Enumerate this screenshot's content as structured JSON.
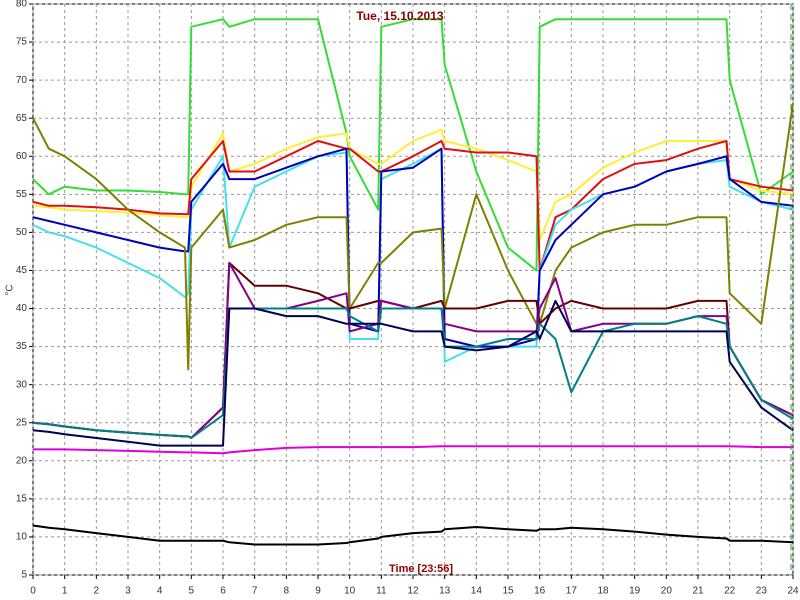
{
  "chart_data": {
    "type": "line",
    "title": "Tue, 15.10.2013",
    "xlabel": "Time [23:56]",
    "ylabel": "°C",
    "grid": true,
    "xlim": [
      0,
      24
    ],
    "xticks": [
      0,
      1,
      2,
      3,
      4,
      5,
      6,
      7,
      8,
      9,
      10,
      11,
      12,
      13,
      14,
      15,
      16,
      17,
      18,
      19,
      20,
      21,
      22,
      23,
      24
    ],
    "ylim": [
      5,
      80
    ],
    "yticks": [
      5,
      10,
      15,
      20,
      25,
      30,
      35,
      40,
      45,
      50,
      55,
      60,
      65,
      70,
      75,
      80
    ],
    "x": [
      0,
      0.5,
      1,
      2,
      3,
      4,
      4.8,
      4.9,
      5,
      6,
      6.2,
      7,
      8,
      9,
      9.9,
      10,
      10.9,
      11,
      12,
      12.9,
      13,
      14,
      15,
      15.9,
      16,
      16.5,
      17,
      18,
      19,
      20,
      21,
      21.9,
      22,
      23,
      24
    ],
    "series": [
      {
        "color": "#33dd33",
        "values": [
          57,
          55,
          56,
          55.5,
          55.5,
          55.3,
          55,
          55,
          77,
          78,
          77,
          78,
          78,
          78,
          63,
          60,
          53,
          77,
          78,
          78,
          72,
          58,
          48,
          45,
          77,
          78,
          78,
          78,
          78,
          78,
          78,
          78,
          70,
          55,
          58
        ]
      },
      {
        "color": "#ffee33",
        "values": [
          53.5,
          53.3,
          53,
          52.8,
          52.6,
          52.3,
          52,
          52,
          56,
          63,
          58,
          59,
          61,
          62.5,
          63,
          61,
          59,
          59,
          62,
          63.5,
          62,
          61,
          59.5,
          58,
          49,
          54,
          55,
          58.5,
          60.5,
          62,
          62,
          62,
          57,
          55.5,
          55
        ]
      },
      {
        "color": "#dd1111",
        "values": [
          54,
          53.5,
          53.5,
          53.3,
          53,
          52.5,
          52.4,
          52.4,
          57,
          62,
          58,
          58,
          60,
          62,
          61,
          61,
          58,
          58,
          60,
          62,
          61,
          60.5,
          60.5,
          60,
          45,
          52,
          53,
          57,
          59,
          59.5,
          61,
          62,
          57,
          56,
          55.5
        ]
      },
      {
        "color": "#44e0ee",
        "values": [
          51,
          50,
          49.5,
          48,
          46,
          44,
          41.5,
          42,
          53,
          60,
          48,
          56,
          58,
          60,
          60.5,
          36,
          36,
          57,
          59,
          61,
          33,
          35,
          35,
          35,
          45,
          51,
          53,
          55,
          56,
          58,
          59,
          59.5,
          56,
          54,
          53
        ]
      },
      {
        "color": "#0000bb",
        "values": [
          52,
          51.5,
          51,
          50,
          49,
          48,
          47.5,
          47.5,
          54,
          59,
          57,
          57,
          58.5,
          60,
          61,
          38,
          37,
          58,
          58.5,
          61,
          36,
          35,
          35,
          36,
          45,
          49,
          51,
          55,
          56,
          58,
          59,
          60,
          57,
          54,
          53.5
        ]
      },
      {
        "color": "#808000",
        "values": [
          65,
          61,
          60,
          57,
          53,
          50,
          48,
          32,
          48,
          53,
          48,
          49,
          51,
          52,
          52,
          40,
          46,
          46,
          50,
          50.5,
          40,
          55,
          45,
          38,
          38,
          45,
          48,
          50,
          51,
          51,
          52,
          52,
          42,
          38,
          67
        ]
      },
      {
        "color": "#660000",
        "values": [
          25,
          24.8,
          24.5,
          24,
          23.7,
          23.4,
          23.2,
          23.2,
          23,
          27,
          46,
          43,
          43,
          42,
          40,
          40,
          41,
          41,
          40,
          41,
          40,
          40,
          41,
          41,
          38,
          40,
          41,
          40,
          40,
          40,
          41,
          41,
          35,
          28,
          26
        ]
      },
      {
        "color": "#880088",
        "values": [
          25,
          24.8,
          24.5,
          24,
          23.7,
          23.4,
          23.2,
          23.2,
          23,
          27,
          46,
          40,
          40,
          41,
          42,
          37,
          38,
          41,
          40,
          40,
          38,
          37,
          37,
          37,
          40,
          44,
          37,
          38,
          38,
          38,
          39,
          39,
          35,
          28,
          26
        ]
      },
      {
        "color": "#008080",
        "values": [
          25,
          24.8,
          24.5,
          24,
          23.7,
          23.4,
          23.2,
          23.2,
          23,
          26,
          40,
          40,
          40,
          40,
          40,
          39,
          37,
          40,
          40,
          40,
          35,
          35,
          36,
          36,
          38,
          36,
          29,
          37,
          38,
          38,
          39,
          38,
          35,
          28,
          25.5
        ]
      },
      {
        "color": "#000055",
        "values": [
          24,
          23.8,
          23.5,
          23,
          22.5,
          22,
          22,
          22,
          22,
          22,
          40,
          40,
          39,
          39,
          38,
          38,
          38,
          38,
          37,
          37,
          35,
          34.5,
          35,
          37,
          36,
          41,
          37,
          37,
          37,
          37,
          37,
          37,
          33,
          27,
          24
        ]
      },
      {
        "color": "#dd00dd",
        "values": [
          21.5,
          21.5,
          21.5,
          21.4,
          21.3,
          21.2,
          21.1,
          21.1,
          21.1,
          21,
          21.1,
          21.4,
          21.7,
          21.8,
          21.8,
          21.8,
          21.8,
          21.8,
          21.8,
          21.9,
          21.9,
          21.9,
          21.9,
          21.9,
          21.9,
          21.9,
          21.9,
          21.9,
          21.9,
          21.9,
          21.9,
          21.9,
          21.9,
          21.8,
          21.8
        ]
      },
      {
        "color": "#000000",
        "values": [
          11.5,
          11.2,
          11,
          10.5,
          10,
          9.5,
          9.5,
          9.5,
          9.5,
          9.5,
          9.3,
          9,
          9,
          9,
          9.2,
          9.3,
          9.8,
          10,
          10.5,
          10.7,
          11,
          11.3,
          11,
          10.8,
          11,
          11,
          11.2,
          11,
          10.7,
          10.3,
          10,
          9.8,
          9.5,
          9.5,
          9.3
        ]
      }
    ]
  }
}
